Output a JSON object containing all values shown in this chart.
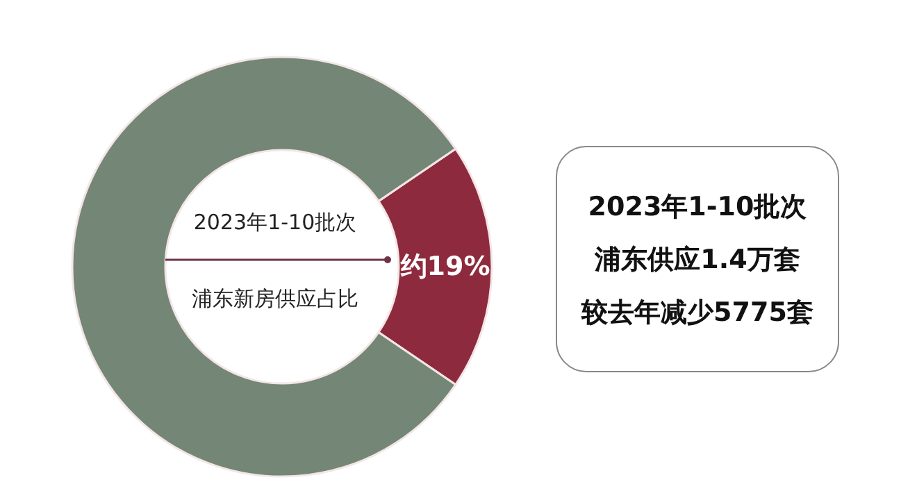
{
  "chart_data": {
    "type": "donut",
    "categories": [
      null,
      null
    ],
    "values": [
      19,
      81
    ],
    "colors": [
      "#8e2a3e",
      "#748675"
    ],
    "value_labels": [
      "约19%",
      null
    ],
    "annotations": [
      "2023年1-10批次",
      "浦东新房供应占比",
      "2023年1-10批次",
      "浦东供应1.4万套",
      "较去年减少5775套"
    ]
  }
}
